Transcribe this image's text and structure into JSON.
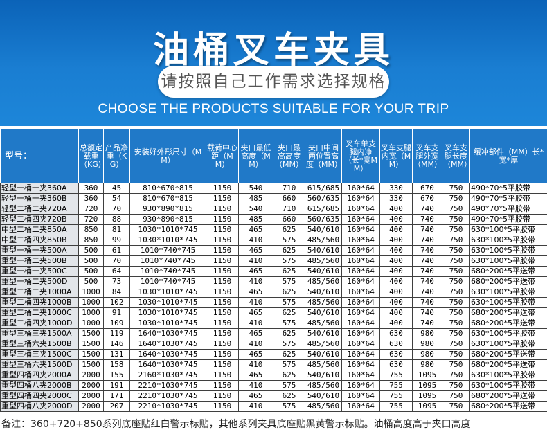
{
  "banner": {
    "title": "油桶叉车夹具",
    "subtitle": "请按照自己工作需求选择规格",
    "english": "CHOOSE THE PRODUCTS SUITABLE FOR YOUR TRIP"
  },
  "table": {
    "headers": [
      "型号：",
      "总额定载重（KG）",
      "产品净重（KG）",
      "安装好外形尺寸（MM）",
      "载荷中心距（MM）",
      "夹口最低高度（MM）",
      "夹口最高高度（MM）",
      "夹口中间两位置高度（MM）",
      "叉车单支腿内净（长*宽MM）",
      "叉车支腿内宽（MM）",
      "叉车支腿外宽（MM）",
      "叉车支腿长度（MM）",
      "缓冲部件（MM）长*宽*厚"
    ],
    "rows": [
      [
        "轻型一桶一夹360A",
        "360",
        "45",
        "810*670*815",
        "1150",
        "540",
        "710",
        "615/685",
        "160*64",
        "330",
        "670",
        "750",
        "490*70*5平胶带"
      ],
      [
        "轻型一桶一夹360B",
        "360",
        "54",
        "810*670*815",
        "1150",
        "485",
        "660",
        "560/635",
        "160*64",
        "330",
        "670",
        "750",
        "490*70*5平胶带"
      ],
      [
        "轻型二桶二夹720A",
        "720",
        "70",
        "930*890*815",
        "1150",
        "540",
        "710",
        "615/685",
        "160*64",
        "400",
        "740",
        "750",
        "490*70*5平胶带"
      ],
      [
        "轻型二桶四夹720B",
        "720",
        "88",
        "930*890*815",
        "1150",
        "485",
        "660",
        "560/635",
        "160*64",
        "400",
        "740",
        "750",
        "490*70*5平胶带"
      ],
      [
        "中型二桶二夹850A",
        "850",
        "81",
        "1030*1010*745",
        "1150",
        "465",
        "625",
        "540/610",
        "160*64",
        "400",
        "740",
        "750",
        "630*100*5平胶带"
      ],
      [
        "中型二桶四夹850B",
        "850",
        "99",
        "1030*1010*745",
        "1150",
        "410",
        "575",
        "485/560",
        "160*64",
        "400",
        "740",
        "750",
        "630*100*5平胶带"
      ],
      [
        "重型一桶一夹500A",
        "500",
        "61",
        "1010*740*745",
        "1150",
        "465",
        "625",
        "540/610",
        "160*64",
        "400",
        "740",
        "750",
        "630*100*5平胶带"
      ],
      [
        "重型一桶二夹500B",
        "500",
        "70",
        "1010*740*745",
        "1150",
        "410",
        "575",
        "485/560",
        "160*64",
        "400",
        "740",
        "750",
        "630*100*5平胶带"
      ],
      [
        "重型一桶一夹500C",
        "500",
        "64",
        "1010*740*745",
        "1150",
        "465",
        "625",
        "540/610",
        "160*64",
        "400",
        "740",
        "750",
        "680*200*5平送带"
      ],
      [
        "重型一桶二夹500D",
        "500",
        "73",
        "1010*740*745",
        "1150",
        "410",
        "575",
        "485/560",
        "160*64",
        "400",
        "740",
        "750",
        "680*200*5平送带"
      ],
      [
        "重型二桶二夹1000A",
        "1000",
        "84",
        "1030*1010*745",
        "1150",
        "465",
        "625",
        "540/610",
        "160*64",
        "400",
        "740",
        "750",
        "630*100*5平胶带"
      ],
      [
        "重型二桶四夹1000B",
        "1000",
        "102",
        "1030*1010*745",
        "1150",
        "410",
        "575",
        "485/560",
        "160*64",
        "400",
        "740",
        "750",
        "630*100*5平胶带"
      ],
      [
        "重型二桶二夹1000C",
        "1000",
        "91",
        "1030*1010*745",
        "1150",
        "465",
        "625",
        "540/610",
        "160*64",
        "400",
        "740",
        "750",
        "680*200*5平送带"
      ],
      [
        "重型二桶四夹1000D",
        "1000",
        "109",
        "1030*1010*745",
        "1150",
        "410",
        "575",
        "485/560",
        "160*64",
        "400",
        "740",
        "750",
        "680*200*5平送带"
      ],
      [
        "重型三桶三夹1500A",
        "1500",
        "119",
        "1640*1030*745",
        "1150",
        "465",
        "625",
        "540/610",
        "160*64",
        "630",
        "980",
        "750",
        "630*100*5平胶带"
      ],
      [
        "重型三桶六夹1500B",
        "1500",
        "146",
        "1640*1030*745",
        "1150",
        "410",
        "575",
        "485/560",
        "160*64",
        "630",
        "980",
        "750",
        "630*100*5平胶带"
      ],
      [
        "重型三桶三夹1500C",
        "1500",
        "131",
        "1640*1030*745",
        "1150",
        "465",
        "625",
        "540/610",
        "160*64",
        "630",
        "980",
        "750",
        "680*200*5平送带"
      ],
      [
        "重型三桶六夹1500D",
        "1500",
        "158",
        "1640*1030*745",
        "1150",
        "410",
        "575",
        "485/560",
        "160*64",
        "630",
        "980",
        "750",
        "680*200*5平送带"
      ],
      [
        "重型四桶四夹2000A",
        "2000",
        "155",
        "2160*1030*745",
        "1150",
        "465",
        "625",
        "540/610",
        "160*64",
        "755",
        "1095",
        "750",
        "630*100*5平胶带"
      ],
      [
        "重型四桶八夹2000B",
        "2000",
        "191",
        "2210*1030*745",
        "1150",
        "410",
        "575",
        "485/560",
        "160*64",
        "755",
        "1095",
        "750",
        "630*100*5平胶带"
      ],
      [
        "重型四桶四夹2000C",
        "2000",
        "171",
        "2210*1030*745",
        "1150",
        "465",
        "625",
        "540/610",
        "160*64",
        "755",
        "1095",
        "750",
        "680*200*5平送带"
      ],
      [
        "重型四桶八夹2000D",
        "2000",
        "207",
        "2210*1030*745",
        "1150",
        "410",
        "575",
        "485/560",
        "160*64",
        "755",
        "1095",
        "750",
        "680*200*5平送带"
      ]
    ]
  },
  "note": "备注：360+720+850系列底座贴红白警示标贴，其他系列夹具底座贴黑黄警示标贴。油桶高度高于夹口高度"
}
